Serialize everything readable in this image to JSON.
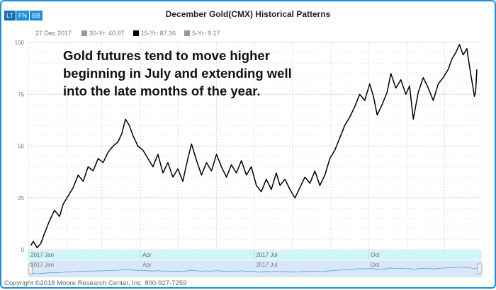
{
  "toolbar": {
    "tabs": [
      {
        "label": "LT"
      },
      {
        "label": "FN"
      },
      {
        "label": "BB"
      }
    ]
  },
  "legend": {
    "date": "27 Dec 2017",
    "items": [
      {
        "label": "30-Yr: 40.97",
        "color": "#999999"
      },
      {
        "label": "15-Yr: 87.36",
        "color": "#000000"
      },
      {
        "label": "5-Yr: 9.17",
        "color": "#999999"
      }
    ]
  },
  "annotation": "Gold futures tend to move higher\nbeginning in July and extending well\ninto the late months of the year.",
  "navigator": {
    "labels": [
      "2017 Jan",
      "Apr",
      "2017 Jul",
      "Oct"
    ]
  },
  "copyright": "Copyright ©2018 Moore Research Center, Inc. 800-927-7259",
  "chart_data": {
    "type": "line",
    "title": "December Gold(CMX) Historical Patterns",
    "xlabel": "",
    "ylabel": "",
    "ylim": [
      0,
      100
    ],
    "yticks": [
      0,
      25,
      50,
      75,
      100
    ],
    "xticks": [
      "2017 Jan",
      "Apr",
      "2017 Jul",
      "Oct"
    ],
    "grid": true,
    "series": [
      {
        "name": "15-Yr: 87.36",
        "color": "#000000",
        "points": [
          [
            "2017-01-03",
            2
          ],
          [
            "2017-01-05",
            4
          ],
          [
            "2017-01-08",
            1
          ],
          [
            "2017-01-11",
            3
          ],
          [
            "2017-01-14",
            8
          ],
          [
            "2017-01-18",
            14
          ],
          [
            "2017-01-22",
            19
          ],
          [
            "2017-01-26",
            16
          ],
          [
            "2017-01-29",
            22
          ],
          [
            "2017-02-02",
            26
          ],
          [
            "2017-02-06",
            30
          ],
          [
            "2017-02-10",
            36
          ],
          [
            "2017-02-14",
            33
          ],
          [
            "2017-02-18",
            40
          ],
          [
            "2017-02-22",
            38
          ],
          [
            "2017-02-26",
            44
          ],
          [
            "2017-03-02",
            42
          ],
          [
            "2017-03-06",
            47
          ],
          [
            "2017-03-10",
            50
          ],
          [
            "2017-03-14",
            52
          ],
          [
            "2017-03-17",
            56
          ],
          [
            "2017-03-20",
            63
          ],
          [
            "2017-03-23",
            60
          ],
          [
            "2017-03-26",
            55
          ],
          [
            "2017-03-30",
            50
          ],
          [
            "2017-04-03",
            48
          ],
          [
            "2017-04-07",
            44
          ],
          [
            "2017-04-11",
            40
          ],
          [
            "2017-04-15",
            46
          ],
          [
            "2017-04-19",
            37
          ],
          [
            "2017-04-23",
            42
          ],
          [
            "2017-04-27",
            35
          ],
          [
            "2017-05-01",
            39
          ],
          [
            "2017-05-05",
            33
          ],
          [
            "2017-05-09",
            44
          ],
          [
            "2017-05-12",
            51
          ],
          [
            "2017-05-16",
            43
          ],
          [
            "2017-05-20",
            36
          ],
          [
            "2017-05-24",
            42
          ],
          [
            "2017-05-28",
            38
          ],
          [
            "2017-06-01",
            46
          ],
          [
            "2017-06-05",
            40
          ],
          [
            "2017-06-09",
            35
          ],
          [
            "2017-06-13",
            41
          ],
          [
            "2017-06-17",
            37
          ],
          [
            "2017-06-21",
            43
          ],
          [
            "2017-06-25",
            36
          ],
          [
            "2017-06-29",
            40
          ],
          [
            "2017-07-03",
            31
          ],
          [
            "2017-07-07",
            28
          ],
          [
            "2017-07-11",
            34
          ],
          [
            "2017-07-15",
            29
          ],
          [
            "2017-07-19",
            37
          ],
          [
            "2017-07-22",
            31
          ],
          [
            "2017-07-26",
            34
          ],
          [
            "2017-07-30",
            29
          ],
          [
            "2017-08-03",
            25
          ],
          [
            "2017-08-07",
            30
          ],
          [
            "2017-08-11",
            35
          ],
          [
            "2017-08-15",
            32
          ],
          [
            "2017-08-19",
            38
          ],
          [
            "2017-08-23",
            31
          ],
          [
            "2017-08-27",
            36
          ],
          [
            "2017-08-31",
            44
          ],
          [
            "2017-09-04",
            48
          ],
          [
            "2017-09-08",
            54
          ],
          [
            "2017-09-12",
            60
          ],
          [
            "2017-09-16",
            64
          ],
          [
            "2017-09-20",
            69
          ],
          [
            "2017-09-24",
            75
          ],
          [
            "2017-09-28",
            72
          ],
          [
            "2017-10-02",
            80
          ],
          [
            "2017-10-05",
            74
          ],
          [
            "2017-10-08",
            65
          ],
          [
            "2017-10-12",
            70
          ],
          [
            "2017-10-16",
            76
          ],
          [
            "2017-10-19",
            85
          ],
          [
            "2017-10-23",
            78
          ],
          [
            "2017-10-27",
            82
          ],
          [
            "2017-10-31",
            75
          ],
          [
            "2017-11-03",
            79
          ],
          [
            "2017-11-06",
            63
          ],
          [
            "2017-11-10",
            76
          ],
          [
            "2017-11-14",
            83
          ],
          [
            "2017-11-18",
            78
          ],
          [
            "2017-11-22",
            72
          ],
          [
            "2017-11-26",
            80
          ],
          [
            "2017-11-30",
            83
          ],
          [
            "2017-12-04",
            87
          ],
          [
            "2017-12-07",
            92
          ],
          [
            "2017-12-10",
            95
          ],
          [
            "2017-12-13",
            99
          ],
          [
            "2017-12-16",
            94
          ],
          [
            "2017-12-19",
            97
          ],
          [
            "2017-12-22",
            85
          ],
          [
            "2017-12-24",
            78
          ],
          [
            "2017-12-25",
            74
          ],
          [
            "2017-12-26",
            76
          ],
          [
            "2017-12-27",
            87
          ]
        ]
      }
    ]
  }
}
